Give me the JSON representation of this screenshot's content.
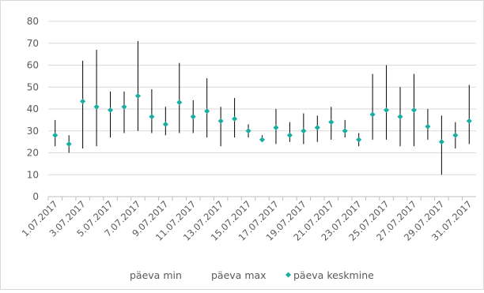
{
  "chart_data": {
    "type": "scatter",
    "variant": "high-low-average",
    "title": "",
    "xlabel": "",
    "ylabel": "",
    "ylim": [
      0,
      80
    ],
    "yticks": [
      0,
      10,
      20,
      30,
      40,
      50,
      60,
      70,
      80
    ],
    "grid": "horizontal",
    "legend_position": "bottom",
    "colors": {
      "range_line": "#000000",
      "marker": "#1aada2",
      "grid": "#d9d9d9",
      "axis": "#bfbfbf"
    },
    "categories": [
      "1.07.2017",
      "2.07.2017",
      "3.07.2017",
      "4.07.2017",
      "5.07.2017",
      "6.07.2017",
      "7.07.2017",
      "8.07.2017",
      "9.07.2017",
      "10.07.2017",
      "11.07.2017",
      "12.07.2017",
      "13.07.2017",
      "14.07.2017",
      "15.07.2017",
      "16.07.2017",
      "17.07.2017",
      "18.07.2017",
      "19.07.2017",
      "20.07.2017",
      "21.07.2017",
      "22.07.2017",
      "23.07.2017",
      "24.07.2017",
      "25.07.2017",
      "26.07.2017",
      "27.07.2017",
      "28.07.2017",
      "29.07.2017",
      "30.07.2017",
      "31.07.2017"
    ],
    "x_tick_labels": [
      "1.07.2017",
      "3.07.2017",
      "5.07.2017",
      "7.07.2017",
      "9.07.2017",
      "11.07.2017",
      "13.07.2017",
      "15.07.2017",
      "17.07.2017",
      "19.07.2017",
      "21.07.2017",
      "23.07.2017",
      "25.07.2017",
      "27.07.2017",
      "29.07.2017",
      "31.07.2017"
    ],
    "series": [
      {
        "name": "päeva min",
        "values": [
          23,
          20,
          22,
          23,
          27,
          29,
          30,
          29,
          28,
          29,
          29,
          27,
          23,
          27,
          27,
          25,
          24,
          25,
          24,
          25,
          26,
          27,
          23,
          26,
          26,
          23,
          23,
          26,
          10,
          22,
          24
        ]
      },
      {
        "name": "päeva max",
        "values": [
          35,
          28,
          62,
          67,
          48,
          48,
          71,
          49,
          41,
          61,
          44,
          54,
          41,
          45,
          33,
          28,
          40,
          34,
          38,
          37,
          41,
          35,
          29,
          56,
          60,
          50,
          56,
          40,
          37,
          34,
          51
        ]
      },
      {
        "name": "päeva keskmine",
        "values": [
          28,
          24,
          43.5,
          41,
          39.5,
          41,
          46,
          36.5,
          33,
          43,
          36.5,
          39,
          34.5,
          35.5,
          30,
          26,
          31.5,
          28,
          30,
          31.5,
          34,
          30,
          26,
          37.5,
          39.5,
          36.5,
          39.5,
          32,
          25,
          28,
          34.5
        ]
      }
    ]
  }
}
